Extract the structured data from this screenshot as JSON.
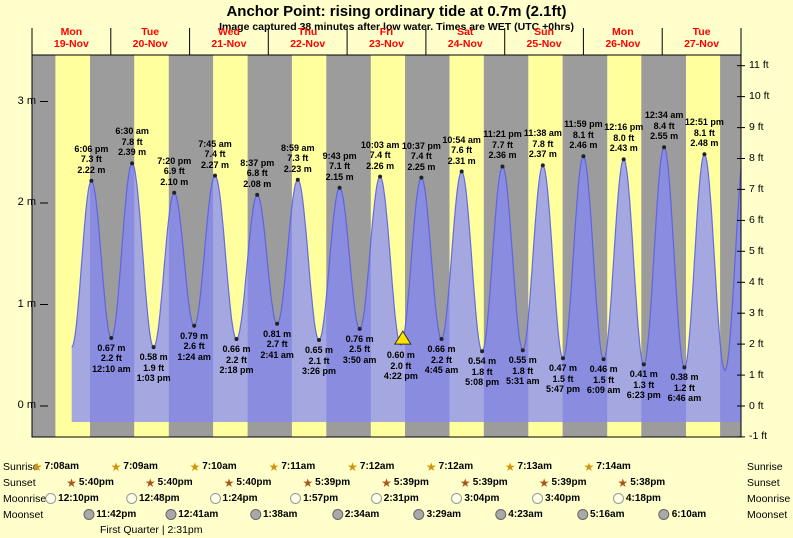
{
  "title": "Anchor Point: rising ordinary tide at 0.7m (2.1ft)",
  "subtitle": "Image captured 38 minutes after low water. Times are WET (UTC +0hrs)",
  "colors": {
    "page_bg": "#ffffcc",
    "day_band": "#ffff9e",
    "night_band": "#9c9c9c",
    "tide_fill": "rgba(130,135,250,0.72)",
    "tide_stroke": "rgba(90,95,230,0.9)",
    "day_label_color": "#ff0000",
    "current_marker_fill": "#ffe100",
    "sunrise_star": "#d4940a",
    "sunset_star": "#a8581c",
    "moonrise_fill": "#ffffe8",
    "moonset_fill": "#a9a9a9"
  },
  "chart_data": {
    "type": "area",
    "title": "Anchor Point: rising ordinary tide at 0.7m (2.1ft)",
    "x_range_days": 9,
    "ylim_m": [
      -0.31,
      3.46
    ],
    "grid": false,
    "x_days": [
      {
        "weekday": "Mon",
        "date": "19-Nov"
      },
      {
        "weekday": "Tue",
        "date": "20-Nov"
      },
      {
        "weekday": "Wed",
        "date": "21-Nov"
      },
      {
        "weekday": "Thu",
        "date": "22-Nov"
      },
      {
        "weekday": "Fri",
        "date": "23-Nov"
      },
      {
        "weekday": "Sat",
        "date": "24-Nov"
      },
      {
        "weekday": "Sun",
        "date": "25-Nov"
      },
      {
        "weekday": "Mon",
        "date": "26-Nov"
      },
      {
        "weekday": "Tue",
        "date": "27-Nov"
      }
    ],
    "y_left": [
      {
        "value": 0,
        "label": "0 m"
      },
      {
        "value": 1,
        "label": "1 m"
      },
      {
        "value": 2,
        "label": "2 m"
      },
      {
        "value": 3,
        "label": "3 m"
      }
    ],
    "y_right": [
      {
        "value": -1,
        "label": "-1 ft"
      },
      {
        "value": 0,
        "label": "0 ft"
      },
      {
        "value": 1,
        "label": "1 ft"
      },
      {
        "value": 2,
        "label": "2 ft"
      },
      {
        "value": 3,
        "label": "3 ft"
      },
      {
        "value": 4,
        "label": "4 ft"
      },
      {
        "value": 5,
        "label": "5 ft"
      },
      {
        "value": 6,
        "label": "6 ft"
      },
      {
        "value": 7,
        "label": "7 ft"
      },
      {
        "value": 8,
        "label": "8 ft"
      },
      {
        "value": 9,
        "label": "9 ft"
      },
      {
        "value": 10,
        "label": "10 ft"
      },
      {
        "value": 11,
        "label": "11 ft"
      }
    ],
    "extremes": [
      {
        "day": 0,
        "hour": 12.08,
        "height_m": 0.58,
        "type": "low",
        "annotate": false
      },
      {
        "day": 0,
        "hour": 18.1,
        "height_m": 2.22,
        "type": "high",
        "annotate": true,
        "time": "6:06 pm",
        "ft": "7.3 ft",
        "m": "2.22 m"
      },
      {
        "day": 1,
        "hour": 0.17,
        "height_m": 0.67,
        "type": "low",
        "annotate": true,
        "time": "12:10 am",
        "ft": "2.2 ft",
        "m": "0.67 m"
      },
      {
        "day": 1,
        "hour": 6.5,
        "height_m": 2.39,
        "type": "high",
        "annotate": true,
        "time": "6:30 am",
        "ft": "7.8 ft",
        "m": "2.39 m"
      },
      {
        "day": 1,
        "hour": 13.05,
        "height_m": 0.58,
        "type": "low",
        "annotate": true,
        "time": "1:03 pm",
        "ft": "1.9 ft",
        "m": "0.58 m"
      },
      {
        "day": 1,
        "hour": 19.33,
        "height_m": 2.1,
        "type": "high",
        "annotate": true,
        "time": "7:20 pm",
        "ft": "6.9 ft",
        "m": "2.10 m"
      },
      {
        "day": 2,
        "hour": 1.4,
        "height_m": 0.79,
        "type": "low",
        "annotate": true,
        "time": "1:24 am",
        "ft": "2.6 ft",
        "m": "0.79 m"
      },
      {
        "day": 2,
        "hour": 7.75,
        "height_m": 2.27,
        "type": "high",
        "annotate": true,
        "time": "7:45 am",
        "ft": "7.4 ft",
        "m": "2.27 m"
      },
      {
        "day": 2,
        "hour": 14.3,
        "height_m": 0.66,
        "type": "low",
        "annotate": true,
        "time": "2:18 pm",
        "ft": "2.2 ft",
        "m": "0.66 m"
      },
      {
        "day": 2,
        "hour": 20.62,
        "height_m": 2.08,
        "type": "high",
        "annotate": true,
        "time": "8:37 pm",
        "ft": "6.8 ft",
        "m": "2.08 m"
      },
      {
        "day": 3,
        "hour": 2.68,
        "height_m": 0.81,
        "type": "low",
        "annotate": true,
        "time": "2:41 am",
        "ft": "2.7 ft",
        "m": "0.81 m"
      },
      {
        "day": 3,
        "hour": 8.98,
        "height_m": 2.23,
        "type": "high",
        "annotate": true,
        "time": "8:59 am",
        "ft": "7.3 ft",
        "m": "2.23 m"
      },
      {
        "day": 3,
        "hour": 15.43,
        "height_m": 0.65,
        "type": "low",
        "annotate": true,
        "time": "3:26 pm",
        "ft": "2.1 ft",
        "m": "0.65 m"
      },
      {
        "day": 3,
        "hour": 21.72,
        "height_m": 2.15,
        "type": "high",
        "annotate": true,
        "time": "9:43 pm",
        "ft": "7.1 ft",
        "m": "2.15 m"
      },
      {
        "day": 4,
        "hour": 3.83,
        "height_m": 0.76,
        "type": "low",
        "annotate": true,
        "time": "3:50 am",
        "ft": "2.5 ft",
        "m": "0.76 m"
      },
      {
        "day": 4,
        "hour": 10.05,
        "height_m": 2.26,
        "type": "high",
        "annotate": true,
        "time": "10:03 am",
        "ft": "7.4 ft",
        "m": "2.26 m"
      },
      {
        "day": 4,
        "hour": 16.37,
        "height_m": 0.6,
        "type": "low",
        "annotate": true,
        "time": "4:22 pm",
        "ft": "2.0 ft",
        "m": "0.60 m",
        "current": true
      },
      {
        "day": 4,
        "hour": 22.62,
        "height_m": 2.25,
        "type": "high",
        "annotate": true,
        "time": "10:37 pm",
        "ft": "7.4 ft",
        "m": "2.25 m"
      },
      {
        "day": 5,
        "hour": 4.75,
        "height_m": 0.66,
        "type": "low",
        "annotate": true,
        "time": "4:45 am",
        "ft": "2.2 ft",
        "m": "0.66 m"
      },
      {
        "day": 5,
        "hour": 10.9,
        "height_m": 2.31,
        "type": "high",
        "annotate": true,
        "time": "10:54 am",
        "ft": "7.6 ft",
        "m": "2.31 m"
      },
      {
        "day": 5,
        "hour": 17.13,
        "height_m": 0.54,
        "type": "low",
        "annotate": true,
        "time": "5:08 pm",
        "ft": "1.8 ft",
        "m": "0.54 m"
      },
      {
        "day": 5,
        "hour": 23.35,
        "height_m": 2.36,
        "type": "high",
        "annotate": true,
        "time": "11:21 pm",
        "ft": "7.7 ft",
        "m": "2.36 m"
      },
      {
        "day": 6,
        "hour": 5.52,
        "height_m": 0.55,
        "type": "low",
        "annotate": true,
        "time": "5:31 am",
        "ft": "1.8 ft",
        "m": "0.55 m"
      },
      {
        "day": 6,
        "hour": 11.63,
        "height_m": 2.37,
        "type": "high",
        "annotate": true,
        "time": "11:38 am",
        "ft": "7.8 ft",
        "m": "2.37 m"
      },
      {
        "day": 6,
        "hour": 17.78,
        "height_m": 0.47,
        "type": "low",
        "annotate": true,
        "time": "5:47 pm",
        "ft": "1.5 ft",
        "m": "0.47 m"
      },
      {
        "day": 6,
        "hour": 23.98,
        "height_m": 2.46,
        "type": "high",
        "annotate": true,
        "time": "11:59 pm",
        "ft": "8.1 ft",
        "m": "2.46 m"
      },
      {
        "day": 7,
        "hour": 6.15,
        "height_m": 0.46,
        "type": "low",
        "annotate": true,
        "time": "6:09 am",
        "ft": "1.5 ft",
        "m": "0.46 m"
      },
      {
        "day": 7,
        "hour": 12.27,
        "height_m": 2.43,
        "type": "high",
        "annotate": true,
        "time": "12:16 pm",
        "ft": "8.0 ft",
        "m": "2.43 m"
      },
      {
        "day": 7,
        "hour": 18.38,
        "height_m": 0.41,
        "type": "low",
        "annotate": true,
        "time": "6:23 pm",
        "ft": "1.3 ft",
        "m": "0.41 m"
      },
      {
        "day": 8,
        "hour": 0.57,
        "height_m": 2.55,
        "type": "high",
        "annotate": true,
        "time": "12:34 am",
        "ft": "8.4 ft",
        "m": "2.55 m"
      },
      {
        "day": 8,
        "hour": 6.77,
        "height_m": 0.38,
        "type": "low",
        "annotate": true,
        "time": "6:46 am",
        "ft": "1.2 ft",
        "m": "0.38 m"
      },
      {
        "day": 8,
        "hour": 12.85,
        "height_m": 2.48,
        "type": "high",
        "annotate": true,
        "time": "12:51 pm",
        "ft": "8.1 ft",
        "m": "2.48 m"
      },
      {
        "day": 8,
        "hour": 19.1,
        "height_m": 0.35,
        "type": "low",
        "annotate": false
      },
      {
        "day": 9,
        "hour": 1.4,
        "height_m": 2.6,
        "type": "high",
        "annotate": false
      }
    ],
    "sun_moon": {
      "sunrise": {
        "row_label": "Sunrise",
        "items": [
          {
            "day": 0,
            "hour": 7.13,
            "label": "7:08am"
          },
          {
            "day": 1,
            "hour": 7.15,
            "label": "7:09am"
          },
          {
            "day": 2,
            "hour": 7.17,
            "label": "7:10am"
          },
          {
            "day": 3,
            "hour": 7.18,
            "label": "7:11am"
          },
          {
            "day": 4,
            "hour": 7.2,
            "label": "7:12am"
          },
          {
            "day": 5,
            "hour": 7.2,
            "label": "7:12am"
          },
          {
            "day": 6,
            "hour": 7.22,
            "label": "7:13am"
          },
          {
            "day": 7,
            "hour": 7.23,
            "label": "7:14am"
          }
        ]
      },
      "sunset": {
        "row_label": "Sunset",
        "items": [
          {
            "day": 0,
            "hour": 17.67,
            "label": "5:40pm"
          },
          {
            "day": 1,
            "hour": 17.67,
            "label": "5:40pm"
          },
          {
            "day": 2,
            "hour": 17.67,
            "label": "5:40pm"
          },
          {
            "day": 3,
            "hour": 17.65,
            "label": "5:39pm"
          },
          {
            "day": 4,
            "hour": 17.65,
            "label": "5:39pm"
          },
          {
            "day": 5,
            "hour": 17.65,
            "label": "5:39pm"
          },
          {
            "day": 6,
            "hour": 17.65,
            "label": "5:39pm"
          },
          {
            "day": 7,
            "hour": 17.63,
            "label": "5:38pm"
          }
        ]
      },
      "moonrise": {
        "row_label": "Moonrise",
        "items": [
          {
            "day": 0,
            "hour": 12.17,
            "label": "12:10pm"
          },
          {
            "day": 1,
            "hour": 12.8,
            "label": "12:48pm"
          },
          {
            "day": 2,
            "hour": 13.4,
            "label": "1:24pm"
          },
          {
            "day": 3,
            "hour": 13.95,
            "label": "1:57pm"
          },
          {
            "day": 4,
            "hour": 14.52,
            "label": "2:31pm"
          },
          {
            "day": 5,
            "hour": 15.07,
            "label": "3:04pm"
          },
          {
            "day": 6,
            "hour": 15.67,
            "label": "3:40pm"
          },
          {
            "day": 7,
            "hour": 16.3,
            "label": "4:18pm"
          }
        ]
      },
      "moonset": {
        "row_label": "Moonset",
        "items": [
          {
            "day": 0,
            "hour": 23.7,
            "label": "11:42pm"
          },
          {
            "day": 2,
            "hour": 0.68,
            "label": "12:41am"
          },
          {
            "day": 3,
            "hour": 1.63,
            "label": "1:38am"
          },
          {
            "day": 4,
            "hour": 2.57,
            "label": "2:34am"
          },
          {
            "day": 5,
            "hour": 3.48,
            "label": "3:29am"
          },
          {
            "day": 6,
            "hour": 4.38,
            "label": "4:23am"
          },
          {
            "day": 7,
            "hour": 5.27,
            "label": "5:16am"
          },
          {
            "day": 8,
            "hour": 6.17,
            "label": "6:10am"
          }
        ]
      }
    },
    "moon_phase": "First Quarter | 2:31pm"
  }
}
